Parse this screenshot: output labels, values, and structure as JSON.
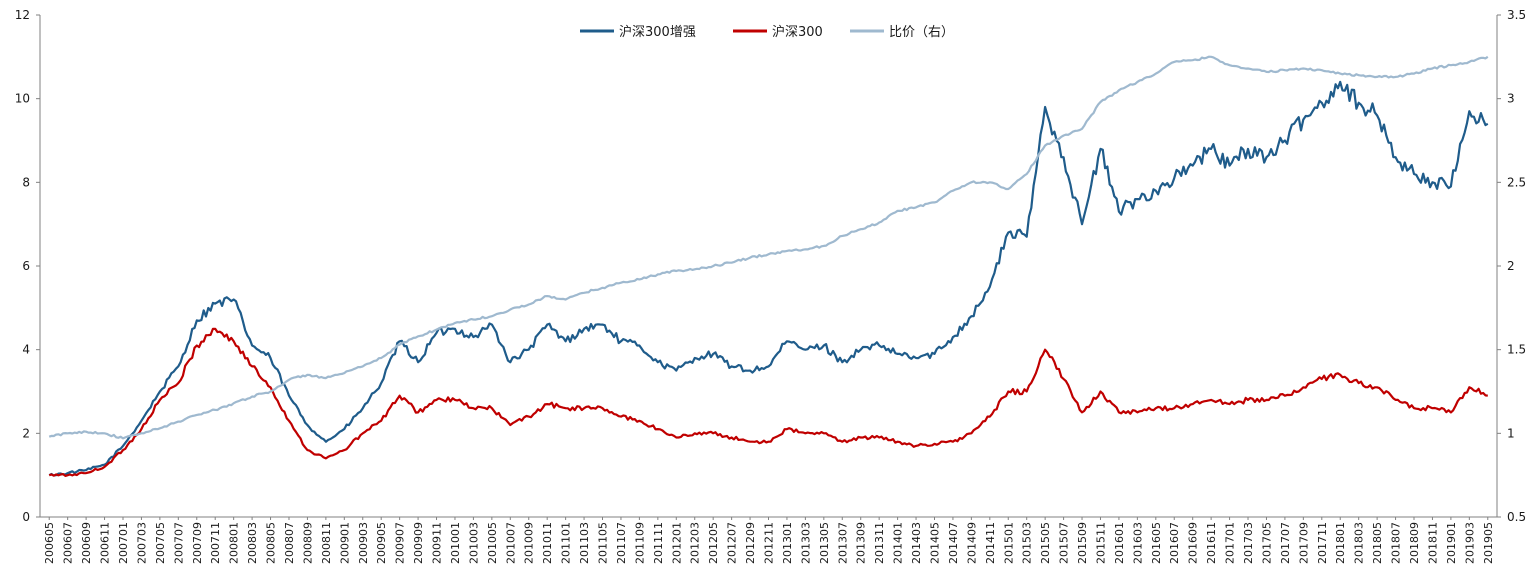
{
  "chart_data": {
    "type": "line",
    "title": "",
    "xlabel": "",
    "ylabel": "",
    "ylabel_right": "",
    "legend_position": "top-center",
    "grid": false,
    "ylim_left": [
      0,
      12
    ],
    "ylim_right": [
      0.5,
      3.5
    ],
    "yticks_left": [
      "0",
      "2",
      "4",
      "6",
      "8",
      "10",
      "12"
    ],
    "yticks_right": [
      "0.5",
      "1",
      "1.5",
      "2",
      "2.5",
      "3",
      "3.5"
    ],
    "x": [
      "200605",
      "200607",
      "200609",
      "200611",
      "200701",
      "200703",
      "200705",
      "200707",
      "200709",
      "200711",
      "200801",
      "200803",
      "200805",
      "200807",
      "200809",
      "200811",
      "200901",
      "200903",
      "200905",
      "200907",
      "200909",
      "200911",
      "201001",
      "201003",
      "201005",
      "201007",
      "201009",
      "201011",
      "201101",
      "201103",
      "201105",
      "201107",
      "201109",
      "201111",
      "201201",
      "201203",
      "201205",
      "201207",
      "201209",
      "201211",
      "201301",
      "201303",
      "201305",
      "201307",
      "201309",
      "201311",
      "201401",
      "201403",
      "201405",
      "201407",
      "201409",
      "201411",
      "201501",
      "201503",
      "201505",
      "201507",
      "201509",
      "201511",
      "201601",
      "201603",
      "201605",
      "201607",
      "201609",
      "201611",
      "201701",
      "201703",
      "201705",
      "201707",
      "201709",
      "201711",
      "201801",
      "201803",
      "201805",
      "201807",
      "201809",
      "201811",
      "201901",
      "201903",
      "201905"
    ],
    "series": [
      {
        "name": "沪深300增强",
        "axis": "left",
        "color": "#1f5c8b",
        "values": [
          1.0,
          1.05,
          1.12,
          1.25,
          1.7,
          2.3,
          3.0,
          3.6,
          4.7,
          5.1,
          5.2,
          4.1,
          3.8,
          2.9,
          2.2,
          1.8,
          2.1,
          2.6,
          3.2,
          4.2,
          3.7,
          4.4,
          4.5,
          4.3,
          4.6,
          3.7,
          4.0,
          4.6,
          4.2,
          4.5,
          4.6,
          4.2,
          4.1,
          3.7,
          3.5,
          3.8,
          3.9,
          3.6,
          3.5,
          3.6,
          4.2,
          4.0,
          4.1,
          3.7,
          4.0,
          4.1,
          3.9,
          3.8,
          3.9,
          4.3,
          4.8,
          5.5,
          6.8,
          6.7,
          9.8,
          8.6,
          7.0,
          8.8,
          7.3,
          7.6,
          7.8,
          8.1,
          8.4,
          8.8,
          8.4,
          8.8,
          8.6,
          9.0,
          9.5,
          9.9,
          10.4,
          9.9,
          9.6,
          8.6,
          8.2,
          8.0,
          7.9,
          9.7,
          9.4
        ]
      },
      {
        "name": "沪深300",
        "axis": "left",
        "color": "#c00000",
        "values": [
          1.0,
          1.0,
          1.05,
          1.2,
          1.6,
          2.1,
          2.8,
          3.2,
          4.1,
          4.5,
          4.2,
          3.6,
          3.1,
          2.3,
          1.6,
          1.4,
          1.6,
          2.0,
          2.3,
          2.9,
          2.5,
          2.8,
          2.8,
          2.6,
          2.6,
          2.2,
          2.4,
          2.7,
          2.6,
          2.6,
          2.6,
          2.4,
          2.3,
          2.1,
          1.9,
          2.0,
          2.0,
          1.9,
          1.8,
          1.8,
          2.1,
          2.0,
          2.0,
          1.8,
          1.9,
          1.9,
          1.8,
          1.7,
          1.75,
          1.8,
          2.0,
          2.4,
          3.0,
          3.0,
          4.0,
          3.3,
          2.5,
          3.0,
          2.5,
          2.5,
          2.6,
          2.6,
          2.7,
          2.8,
          2.7,
          2.8,
          2.8,
          2.9,
          3.1,
          3.3,
          3.4,
          3.2,
          3.1,
          2.8,
          2.6,
          2.6,
          2.5,
          3.1,
          2.9
        ]
      },
      {
        "name": "比价（右）",
        "axis": "right",
        "color": "#9fb9cf",
        "values": [
          0.98,
          1.0,
          1.01,
          1.0,
          0.97,
          1.0,
          1.03,
          1.07,
          1.11,
          1.14,
          1.18,
          1.22,
          1.25,
          1.32,
          1.35,
          1.33,
          1.36,
          1.4,
          1.45,
          1.53,
          1.58,
          1.62,
          1.66,
          1.68,
          1.7,
          1.74,
          1.77,
          1.82,
          1.8,
          1.84,
          1.87,
          1.9,
          1.92,
          1.95,
          1.97,
          1.98,
          2.0,
          2.02,
          2.05,
          2.07,
          2.09,
          2.1,
          2.12,
          2.18,
          2.22,
          2.26,
          2.33,
          2.35,
          2.38,
          2.45,
          2.5,
          2.5,
          2.46,
          2.55,
          2.72,
          2.78,
          2.82,
          2.98,
          3.05,
          3.1,
          3.15,
          3.22,
          3.23,
          3.25,
          3.2,
          3.18,
          3.16,
          3.17,
          3.18,
          3.17,
          3.15,
          3.14,
          3.13,
          3.13,
          3.15,
          3.18,
          3.2,
          3.22,
          3.25
        ]
      }
    ]
  }
}
